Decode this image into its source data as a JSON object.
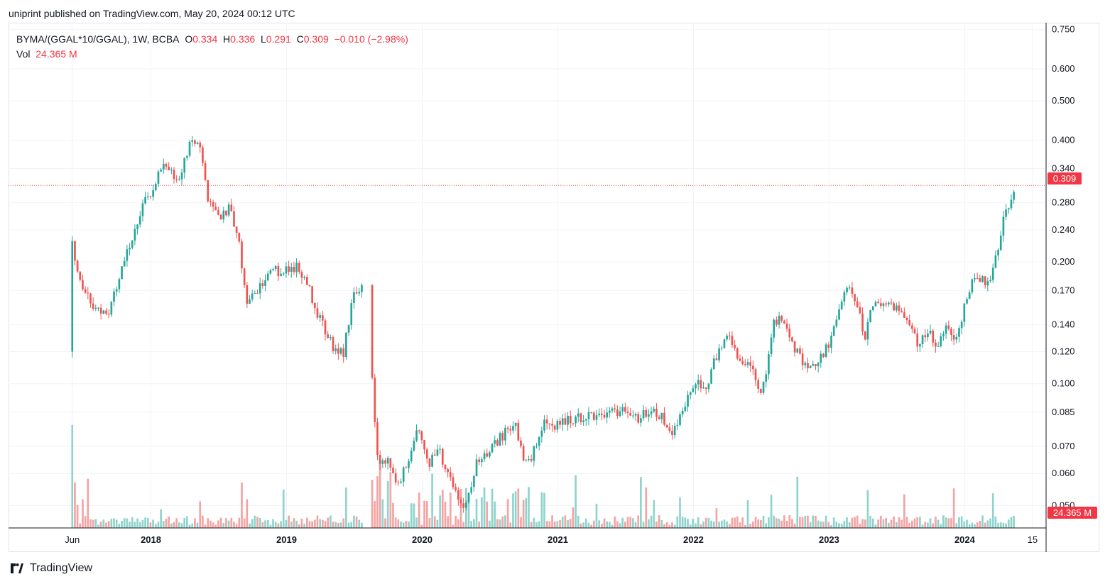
{
  "header": {
    "published_text": "uniprint published on TradingView.com, May 20, 2024 00:12 UTC"
  },
  "footer": {
    "brand": "TradingView"
  },
  "colors": {
    "up": "#26a69a",
    "down": "#ef5350",
    "vol_up": "#8fd4cc",
    "vol_down": "#f5a3a3",
    "grid": "#f0f3fa",
    "price_line": "#ef5350",
    "badge": "#f23645"
  },
  "chart_data": {
    "type": "candlestick",
    "scale": "log",
    "legend": {
      "symbol": "BYMA/(GGAL*10/GGAL), 1W, BCBA",
      "open_label": "O",
      "open": "0.334",
      "high_label": "H",
      "high": "0.336",
      "low_label": "L",
      "low": "0.291",
      "close_label": "C",
      "close": "0.309",
      "change": "−0.010 (−2.98%)",
      "vol_label": "Vol",
      "vol": "24.365 M"
    },
    "last_price": 0.309,
    "last_price_label": "0.309",
    "last_volume_label": "24.365 M",
    "y_ticks": [
      {
        "value": 0.75,
        "label": "0.750"
      },
      {
        "value": 0.6,
        "label": "0.600"
      },
      {
        "value": 0.5,
        "label": "0.500"
      },
      {
        "value": 0.4,
        "label": "0.400"
      },
      {
        "value": 0.34,
        "label": "0.340"
      },
      {
        "value": 0.28,
        "label": "0.280"
      },
      {
        "value": 0.24,
        "label": "0.240"
      },
      {
        "value": 0.2,
        "label": "0.200"
      },
      {
        "value": 0.17,
        "label": "0.170"
      },
      {
        "value": 0.14,
        "label": "0.140"
      },
      {
        "value": 0.12,
        "label": "0.120"
      },
      {
        "value": 0.1,
        "label": "0.100"
      },
      {
        "value": 0.085,
        "label": "0.085"
      },
      {
        "value": 0.07,
        "label": "0.070"
      },
      {
        "value": 0.06,
        "label": "0.060"
      },
      {
        "value": 0.05,
        "label": "0.050"
      }
    ],
    "x_ticks": [
      {
        "t": 2017.42,
        "label": "Jun",
        "bold": false
      },
      {
        "t": 2018.0,
        "label": "2018",
        "bold": true
      },
      {
        "t": 2019.0,
        "label": "2019",
        "bold": true
      },
      {
        "t": 2020.0,
        "label": "2020",
        "bold": true
      },
      {
        "t": 2021.0,
        "label": "2021",
        "bold": true
      },
      {
        "t": 2022.0,
        "label": "2022",
        "bold": true
      },
      {
        "t": 2023.0,
        "label": "2023",
        "bold": true
      },
      {
        "t": 2024.0,
        "label": "2024",
        "bold": true
      },
      {
        "t": 2024.5,
        "label": "15",
        "bold": false
      }
    ],
    "x_range": [
      2016.95,
      2024.6
    ],
    "y_range": [
      0.044,
      0.78
    ],
    "anchors": [
      {
        "t": 2017.42,
        "p": 0.225
      },
      {
        "t": 2017.46,
        "p": 0.19
      },
      {
        "t": 2017.52,
        "p": 0.165
      },
      {
        "t": 2017.6,
        "p": 0.152
      },
      {
        "t": 2017.7,
        "p": 0.152
      },
      {
        "t": 2017.78,
        "p": 0.19
      },
      {
        "t": 2017.85,
        "p": 0.225
      },
      {
        "t": 2017.93,
        "p": 0.27
      },
      {
        "t": 2018.0,
        "p": 0.3
      },
      {
        "t": 2018.08,
        "p": 0.345
      },
      {
        "t": 2018.14,
        "p": 0.34
      },
      {
        "t": 2018.18,
        "p": 0.305
      },
      {
        "t": 2018.25,
        "p": 0.36
      },
      {
        "t": 2018.3,
        "p": 0.4
      },
      {
        "t": 2018.36,
        "p": 0.38
      },
      {
        "t": 2018.42,
        "p": 0.29
      },
      {
        "t": 2018.5,
        "p": 0.26
      },
      {
        "t": 2018.58,
        "p": 0.27
      },
      {
        "t": 2018.65,
        "p": 0.22
      },
      {
        "t": 2018.7,
        "p": 0.16
      },
      {
        "t": 2018.78,
        "p": 0.17
      },
      {
        "t": 2018.88,
        "p": 0.19
      },
      {
        "t": 2018.98,
        "p": 0.19
      },
      {
        "t": 2019.08,
        "p": 0.195
      },
      {
        "t": 2019.15,
        "p": 0.18
      },
      {
        "t": 2019.22,
        "p": 0.15
      },
      {
        "t": 2019.3,
        "p": 0.132
      },
      {
        "t": 2019.36,
        "p": 0.12
      },
      {
        "t": 2019.42,
        "p": 0.12
      },
      {
        "t": 2019.5,
        "p": 0.17
      },
      {
        "t": 2019.56,
        "p": 0.172
      },
      {
        "t": 2019.61,
        "p": 0.155
      },
      {
        "t": 2019.64,
        "p": 0.087
      },
      {
        "t": 2019.68,
        "p": 0.063
      },
      {
        "t": 2019.75,
        "p": 0.065
      },
      {
        "t": 2019.82,
        "p": 0.055
      },
      {
        "t": 2019.9,
        "p": 0.066
      },
      {
        "t": 2019.97,
        "p": 0.077
      },
      {
        "t": 2020.04,
        "p": 0.063
      },
      {
        "t": 2020.12,
        "p": 0.069
      },
      {
        "t": 2020.2,
        "p": 0.058
      },
      {
        "t": 2020.27,
        "p": 0.052
      },
      {
        "t": 2020.33,
        "p": 0.05
      },
      {
        "t": 2020.4,
        "p": 0.065
      },
      {
        "t": 2020.5,
        "p": 0.069
      },
      {
        "t": 2020.6,
        "p": 0.075
      },
      {
        "t": 2020.68,
        "p": 0.08
      },
      {
        "t": 2020.75,
        "p": 0.065
      },
      {
        "t": 2020.8,
        "p": 0.065
      },
      {
        "t": 2020.9,
        "p": 0.08
      },
      {
        "t": 2021.0,
        "p": 0.079
      },
      {
        "t": 2021.1,
        "p": 0.082
      },
      {
        "t": 2021.2,
        "p": 0.083
      },
      {
        "t": 2021.35,
        "p": 0.085
      },
      {
        "t": 2021.5,
        "p": 0.085
      },
      {
        "t": 2021.6,
        "p": 0.082
      },
      {
        "t": 2021.68,
        "p": 0.087
      },
      {
        "t": 2021.76,
        "p": 0.083
      },
      {
        "t": 2021.84,
        "p": 0.075
      },
      {
        "t": 2021.92,
        "p": 0.086
      },
      {
        "t": 2022.0,
        "p": 0.1
      },
      {
        "t": 2022.1,
        "p": 0.1
      },
      {
        "t": 2022.18,
        "p": 0.12
      },
      {
        "t": 2022.26,
        "p": 0.13
      },
      {
        "t": 2022.34,
        "p": 0.115
      },
      {
        "t": 2022.42,
        "p": 0.11
      },
      {
        "t": 2022.5,
        "p": 0.094
      },
      {
        "t": 2022.56,
        "p": 0.12
      },
      {
        "t": 2022.6,
        "p": 0.145
      },
      {
        "t": 2022.68,
        "p": 0.14
      },
      {
        "t": 2022.76,
        "p": 0.12
      },
      {
        "t": 2022.84,
        "p": 0.11
      },
      {
        "t": 2022.92,
        "p": 0.113
      },
      {
        "t": 2023.0,
        "p": 0.125
      },
      {
        "t": 2023.08,
        "p": 0.155
      },
      {
        "t": 2023.14,
        "p": 0.172
      },
      {
        "t": 2023.2,
        "p": 0.16
      },
      {
        "t": 2023.26,
        "p": 0.13
      },
      {
        "t": 2023.32,
        "p": 0.155
      },
      {
        "t": 2023.42,
        "p": 0.16
      },
      {
        "t": 2023.5,
        "p": 0.155
      },
      {
        "t": 2023.58,
        "p": 0.14
      },
      {
        "t": 2023.66,
        "p": 0.125
      },
      {
        "t": 2023.74,
        "p": 0.137
      },
      {
        "t": 2023.8,
        "p": 0.12
      },
      {
        "t": 2023.86,
        "p": 0.14
      },
      {
        "t": 2023.92,
        "p": 0.125
      },
      {
        "t": 2024.0,
        "p": 0.155
      },
      {
        "t": 2024.06,
        "p": 0.18
      },
      {
        "t": 2024.12,
        "p": 0.18
      },
      {
        "t": 2024.18,
        "p": 0.18
      },
      {
        "t": 2024.24,
        "p": 0.215
      },
      {
        "t": 2024.3,
        "p": 0.265
      },
      {
        "t": 2024.35,
        "p": 0.29
      },
      {
        "t": 2024.38,
        "p": 0.309
      }
    ],
    "gap": [
      2019.57,
      2019.63
    ],
    "volume_note": "weekly volume histogram; first bar tallest, mostly small bars thereafter"
  }
}
